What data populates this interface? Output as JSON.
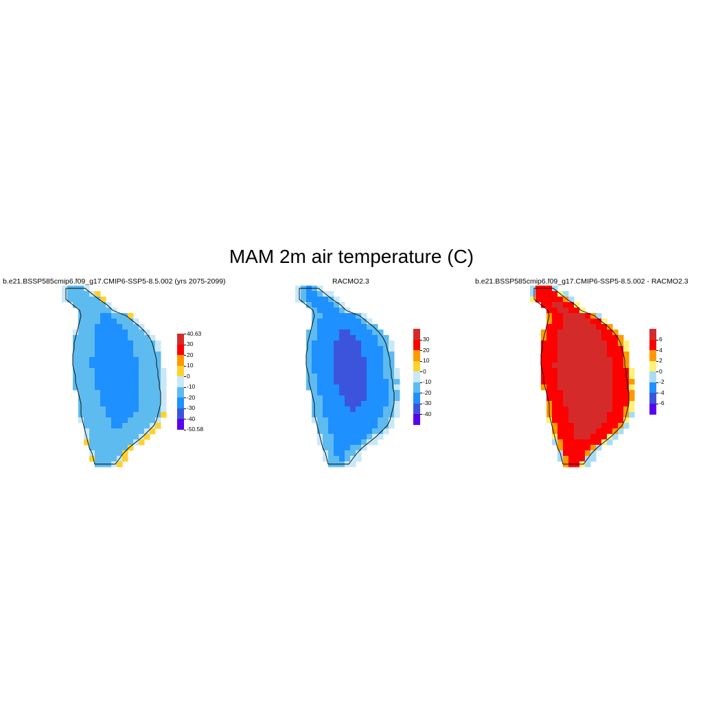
{
  "title": "MAM 2m air temperature (C)",
  "chart_data": [
    {
      "type": "heatmap",
      "title": "b.e21.BSSP585cmip6.f09_g17.CMIP6-SSP5-8.5.002 (yrs 2075-2099)",
      "colorbar": {
        "labels": [
          "40.63",
          "30",
          "20",
          "10",
          "0",
          "-10",
          "-20",
          "-30",
          "-40",
          "-50.58"
        ],
        "colors": [
          "#d52a2a",
          "#ff0000",
          "#ff9900",
          "#ffd12e",
          "#c8e8f8",
          "#5dbbf0",
          "#1e90ff",
          "#3c54dc",
          "#5a00f0"
        ]
      },
      "field_summary": {
        "interior": -25,
        "ice_sheet": -15,
        "margin": -5,
        "south_coast": 3
      }
    },
    {
      "type": "heatmap",
      "title": "RACMO2.3",
      "colorbar": {
        "labels": [
          "30",
          "20",
          "10",
          "0",
          "-10",
          "-20",
          "-30",
          "-40"
        ],
        "colors": [
          "#d52a2a",
          "#ff0000",
          "#ff9900",
          "#ffd12e",
          "#c8e8f8",
          "#5dbbf0",
          "#1e90ff",
          "#3c54dc",
          "#5a00f0"
        ]
      },
      "field_summary": {
        "interior": -35,
        "ice_sheet": -25,
        "margin": -15,
        "coast": -5
      }
    },
    {
      "type": "heatmap",
      "title": "b.e21.BSSP585cmip6.f09_g17.CMIP6-SSP5-8.5.002 - RACMO2.3",
      "colorbar": {
        "labels": [
          "6",
          "4",
          "2",
          "0",
          "-2",
          "-4",
          "-6"
        ],
        "colors": [
          "#d52a2a",
          "#ff0000",
          "#ff9900",
          "#fff17a",
          "#a8dcf5",
          "#1e90ff",
          "#3c54dc",
          "#5a00f0"
        ]
      },
      "field_summary": {
        "interior": 7,
        "south": 5,
        "margin": 3,
        "east_coast": -3
      }
    }
  ]
}
